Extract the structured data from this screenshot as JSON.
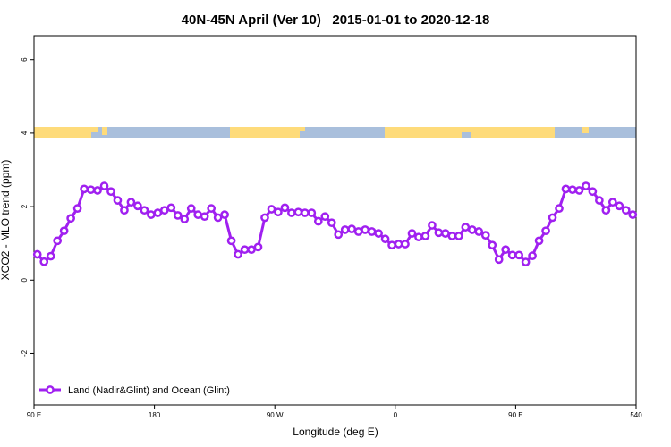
{
  "chart_data": {
    "type": "line",
    "title": "40N-45N April (Ver 10)   2015-01-01 to 2020-12-18",
    "x_label": "Longitude (deg E)",
    "y_label": "XCO2 - MLO trend (ppm)",
    "xlim": [
      90,
      540
    ],
    "xticks": [
      {
        "value": 90,
        "label": "90 E"
      },
      180,
      {
        "value": 270,
        "label": "90 W"
      },
      {
        "value": 360,
        "label": "0"
      },
      {
        "value": 450,
        "label": "90 E"
      },
      540
    ],
    "ylim": [
      -3.4,
      6.65
    ],
    "yticks": [
      -2,
      0,
      2,
      4,
      6
    ],
    "legend": "bottom-left",
    "x": [
      92.5,
      97.5,
      102.5,
      107.5,
      112.5,
      117.5,
      122.5,
      127.5,
      132.5,
      137.5,
      142.5,
      147.5,
      152.5,
      157.5,
      162.5,
      167.5,
      172.5,
      177.5,
      182.5,
      187.5,
      192.5,
      197.5,
      202.5,
      207.5,
      212.5,
      217.5,
      222.5,
      227.5,
      232.5,
      237.5,
      242.5,
      247.5,
      252.5,
      257.5,
      262.5,
      267.5,
      272.5,
      277.5,
      282.5,
      287.5,
      292.5,
      297.5,
      302.5,
      307.5,
      312.5,
      317.5,
      322.5,
      327.5,
      332.5,
      337.5,
      342.5,
      347.5,
      352.5,
      357.5,
      362.5,
      367.5,
      372.5,
      377.5,
      382.5,
      387.5,
      392.5,
      397.5,
      402.5,
      407.5,
      412.5,
      417.5,
      422.5,
      427.5,
      432.5,
      437.5,
      442.5,
      447.5,
      452.5,
      457.5,
      462.5,
      467.5,
      472.5,
      477.5,
      482.5,
      487.5,
      492.5,
      497.5,
      502.5,
      507.5,
      512.5,
      517.5,
      522.5,
      527.5,
      532.5,
      537.5
    ],
    "series": [
      {
        "name": "Land (Nadir&Glint) and Ocean (Glint)",
        "color": "#a020f0",
        "values": [
          0.7,
          0.5,
          0.65,
          1.07,
          1.34,
          1.68,
          1.95,
          2.48,
          2.46,
          2.44,
          2.56,
          2.41,
          2.17,
          1.9,
          2.12,
          2.02,
          1.9,
          1.78,
          1.83,
          1.9,
          1.97,
          1.76,
          1.66,
          1.95,
          1.78,
          1.73,
          1.95,
          1.7,
          1.78,
          1.07,
          0.7,
          0.83,
          0.83,
          0.9,
          1.7,
          1.93,
          1.85,
          1.97,
          1.83,
          1.85,
          1.83,
          1.83,
          1.6,
          1.73,
          1.56,
          1.24,
          1.37,
          1.39,
          1.32,
          1.37,
          1.32,
          1.27,
          1.12,
          0.95,
          0.98,
          0.98,
          1.27,
          1.17,
          1.2,
          1.49,
          1.29,
          1.27,
          1.2,
          1.2,
          1.44,
          1.37,
          1.32,
          1.22,
          0.95,
          0.56,
          0.83,
          0.68,
          0.68,
          0.49,
          0.66,
          1.07,
          1.34,
          1.7,
          1.95,
          2.48,
          2.46,
          2.44,
          2.56,
          2.41,
          2.17,
          1.9,
          2.12,
          2.02,
          1.9,
          1.78
        ]
      }
    ]
  }
}
